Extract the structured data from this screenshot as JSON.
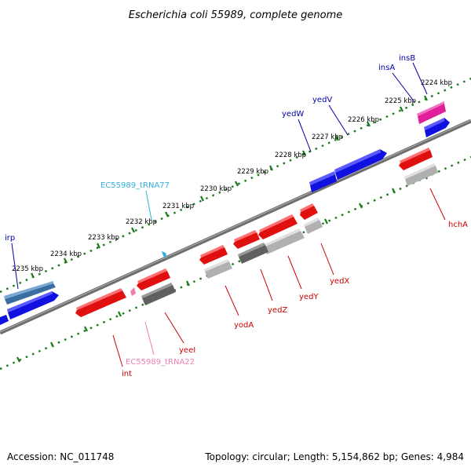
{
  "title": "Escherichia coli 55989, complete genome",
  "footer": {
    "accession": "Accession: NC_011748",
    "topology": "Topology: circular; Length: 5,154,862 bp; Genes: 4,984"
  },
  "colors": {
    "background": "#ffffff",
    "backbone": "#808080",
    "tick": "#1a7a1a",
    "cds_forward_blue": "#1010e0",
    "cds_reverse_red": "#e01010",
    "rRNA_gray": "#b0b0b0",
    "dark_gray": "#606060",
    "trna_cyan": "#30b0e0",
    "trna_pink": "#f080b0",
    "pink_gene": "#e0209a",
    "steelblue_gene": "#3a6ea0"
  },
  "kbp_labels": [
    "2224 kbp",
    "2225 kbp",
    "2226 kbp",
    "2227 kbp",
    "2228 kbp",
    "2229 kbp",
    "2230 kbp",
    "2231 kbp",
    "2232 kbp",
    "2233 kbp",
    "2234 kbp",
    "2235 kbp"
  ],
  "gene_labels": {
    "insB": "insB",
    "insA": "insA",
    "yedV": "yedV",
    "yedW": "yedW",
    "tRNA77": "EC55989_tRNA77",
    "irp": "irp",
    "hchA": "hchA",
    "yedX": "yedX",
    "yedY": "yedY",
    "yedZ": "yedZ",
    "yodA": "yodA",
    "yeeI": "yeeI",
    "tRNA22": "EC55989_tRNA22",
    "int": "int"
  }
}
